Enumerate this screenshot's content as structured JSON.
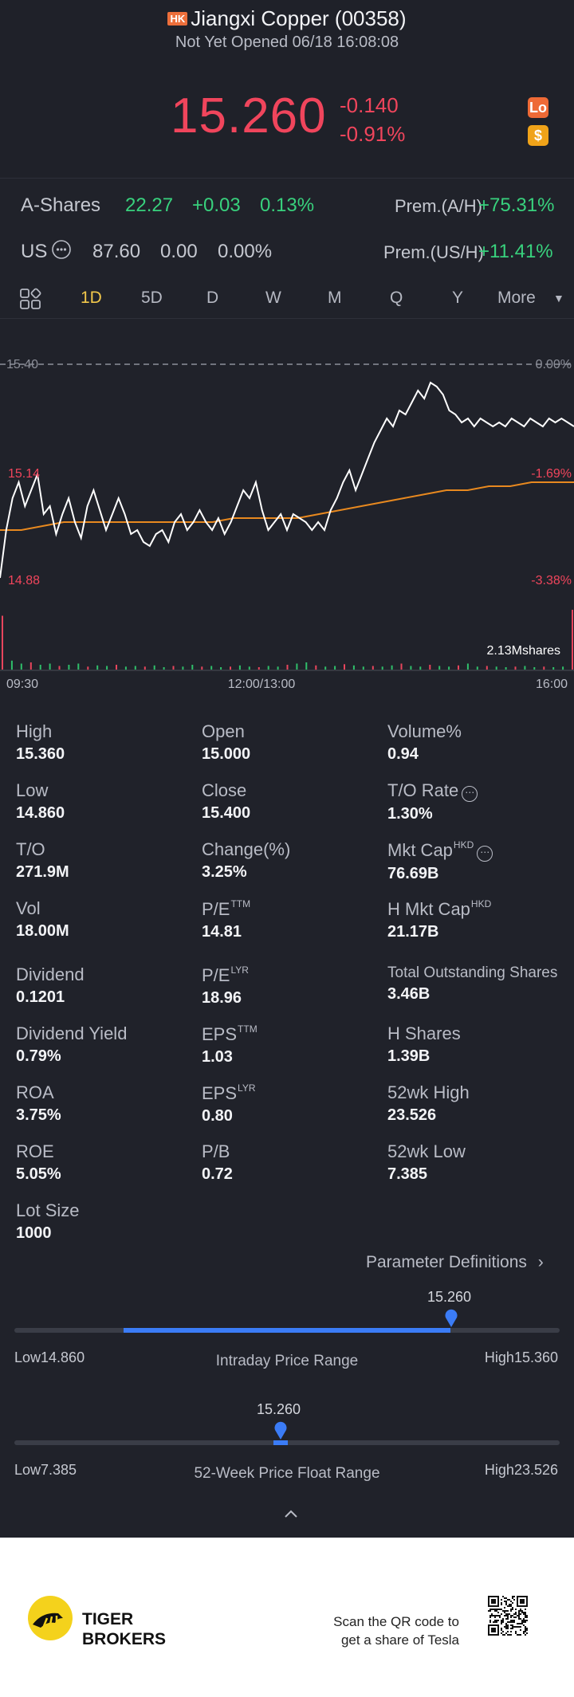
{
  "header": {
    "market_badge": "HK",
    "title": "Jiangxi Copper (00358)",
    "status": "Not Yet Opened 06/18 16:08:08",
    "price": "15.260",
    "change": "-0.140",
    "change_pct": "-0.91%",
    "lo_icon": "Lo",
    "dollar_icon": "$"
  },
  "a_shares": {
    "label": "A-Shares",
    "price": "22.27",
    "change": "+0.03",
    "change_pct": "0.13%",
    "prem_label": "Prem.(A/H)",
    "prem_value": "+75.31%"
  },
  "us": {
    "label": "US",
    "price": "87.60",
    "change": "0.00",
    "change_pct": "0.00%",
    "prem_label": "Prem.(US/H)",
    "prem_value": "+11.41%"
  },
  "tabs": [
    "1D",
    "5D",
    "D",
    "W",
    "M",
    "Q",
    "Y",
    "More"
  ],
  "active_tab": "1D",
  "chart_data": {
    "type": "line",
    "y_left_labels": [
      "15.40",
      "15.14",
      "14.88"
    ],
    "y_right_labels": [
      "0.00%",
      "-1.69%",
      "-3.38%"
    ],
    "x_labels": [
      "09:30",
      "12:00/13:00",
      "16:00"
    ],
    "volume_label": "2.13Mshares",
    "ylim": [
      14.86,
      15.4
    ],
    "price_series": [
      14.88,
      15.0,
      15.08,
      15.12,
      15.06,
      15.1,
      15.14,
      15.04,
      15.06,
      14.99,
      15.04,
      15.08,
      15.02,
      14.98,
      15.06,
      15.1,
      15.05,
      15.0,
      15.04,
      15.08,
      15.04,
      14.99,
      15.0,
      14.97,
      14.96,
      14.99,
      15.0,
      14.97,
      15.02,
      15.04,
      15.0,
      15.02,
      15.05,
      15.02,
      15.0,
      15.03,
      14.99,
      15.02,
      15.06,
      15.1,
      15.08,
      15.12,
      15.05,
      15.0,
      15.02,
      15.04,
      15.0,
      15.04,
      15.03,
      15.02,
      15.0,
      15.02,
      15.0,
      15.05,
      15.08,
      15.12,
      15.15,
      15.1,
      15.14,
      15.18,
      15.22,
      15.25,
      15.28,
      15.26,
      15.3,
      15.29,
      15.32,
      15.35,
      15.33,
      15.37,
      15.36,
      15.34,
      15.3,
      15.29,
      15.27,
      15.28,
      15.26,
      15.28,
      15.27,
      15.26,
      15.27,
      15.26,
      15.28,
      15.27,
      15.26,
      15.28,
      15.27,
      15.26,
      15.28,
      15.27,
      15.28,
      15.27,
      15.26
    ],
    "avg_series": [
      15.0,
      15.0,
      15.01,
      15.02,
      15.02,
      15.02,
      15.02,
      15.02,
      15.02,
      15.02,
      15.02,
      15.03,
      15.03,
      15.03,
      15.03,
      15.04,
      15.05,
      15.06,
      15.07,
      15.08,
      15.09,
      15.1,
      15.1,
      15.11,
      15.11,
      15.12,
      15.12,
      15.12
    ],
    "volume_bars": [
      0.9,
      0.15,
      0.1,
      0.12,
      0.08,
      0.1,
      0.06,
      0.08,
      0.1,
      0.05,
      0.07,
      0.06,
      0.08,
      0.05,
      0.06,
      0.05,
      0.07,
      0.04,
      0.06,
      0.05,
      0.08,
      0.05,
      0.06,
      0.04,
      0.05,
      0.07,
      0.05,
      0.04,
      0.06,
      0.05,
      0.08,
      0.1,
      0.12,
      0.07,
      0.05,
      0.06,
      0.09,
      0.07,
      0.05,
      0.06,
      0.05,
      0.07,
      0.1,
      0.06,
      0.05,
      0.08,
      0.06,
      0.05,
      0.07,
      0.1,
      0.05,
      0.06,
      0.05,
      0.04,
      0.05,
      0.06,
      0.04,
      0.05,
      0.04,
      0.05,
      1.0
    ],
    "colors": {
      "price_line": "#ffffff",
      "avg_line": "#e8891f",
      "volume_up": "#2fbf6a",
      "volume_down": "#e8455c"
    }
  },
  "stats": [
    {
      "label": "High",
      "value": "15.360"
    },
    {
      "label": "Open",
      "value": "15.000"
    },
    {
      "label": "Volume%",
      "value": "0.94"
    },
    {
      "label": "Low",
      "value": "14.860"
    },
    {
      "label": "Close",
      "value": "15.400"
    },
    {
      "label": "T/O Rate",
      "value": "1.30%"
    },
    {
      "label": "T/O",
      "value": "271.9M"
    },
    {
      "label": "Change(%)",
      "value": "3.25%"
    },
    {
      "label": "Mkt Cap",
      "sup": "HKD",
      "value": "76.69B"
    },
    {
      "label": "Vol",
      "value": "18.00M"
    },
    {
      "label": "P/E",
      "sup": "TTM",
      "value": "14.81"
    },
    {
      "label": "H Mkt Cap",
      "sup": "HKD",
      "value": "21.17B"
    },
    {
      "label": "Dividend",
      "value": "0.1201"
    },
    {
      "label": "P/E",
      "sup": "LYR",
      "value": "18.96"
    },
    {
      "label": "Total Outstanding Shares",
      "value": "3.46B"
    },
    {
      "label": "Dividend Yield",
      "value": "0.79%"
    },
    {
      "label": "EPS",
      "sup": "TTM",
      "value": "1.03"
    },
    {
      "label": "H Shares",
      "value": "1.39B"
    },
    {
      "label": "ROA",
      "value": "3.75%"
    },
    {
      "label": "EPS",
      "sup": "LYR",
      "value": "0.80"
    },
    {
      "label": "52wk High",
      "value": "23.526"
    },
    {
      "label": "ROE",
      "value": "5.05%"
    },
    {
      "label": "P/B",
      "value": "0.72"
    },
    {
      "label": "52wk Low",
      "value": "7.385"
    },
    {
      "label": "Lot Size",
      "value": "1000"
    }
  ],
  "param_link": "Parameter Definitions",
  "intraday_range": {
    "current": "15.260",
    "low_label": "Low14.860",
    "high_label": "High15.360",
    "title": "Intraday Price Range",
    "fill_start": 0.2,
    "current_fraction": 0.8
  },
  "week52_range": {
    "current": "15.260",
    "low_label": "Low7.385",
    "high_label": "High23.526",
    "title": "52-Week Price Float Range",
    "current_fraction": 0.488
  },
  "footer": {
    "brand_line1": "TIGER",
    "brand_line2": "BROKERS",
    "qr_line1": "Scan the QR code to",
    "qr_line2": "get a share of Tesla"
  }
}
